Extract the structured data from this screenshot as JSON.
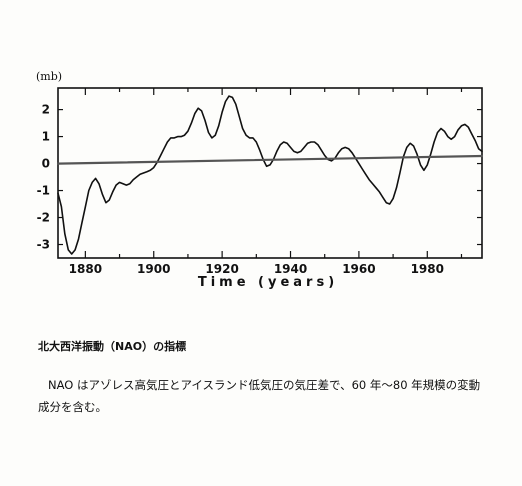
{
  "caption": {
    "title": "北大西洋振動（NAO）の指標",
    "body": "NAO はアゾレス高気圧とアイスランド低気圧の気圧差で、60 年～80 年規模の変動成分を含む。"
  },
  "chart_data": {
    "type": "line",
    "title": "",
    "unit_label": "(mb)",
    "xlabel": "Time (years)",
    "ylabel": "",
    "xlim": [
      1872,
      1996
    ],
    "ylim": [
      -3.5,
      2.8
    ],
    "xticks": [
      1880,
      1900,
      1920,
      1940,
      1960,
      1980
    ],
    "yticks": [
      -3,
      -2,
      -1,
      0,
      1,
      2
    ],
    "grid": false,
    "series": [
      {
        "values_x": [
          1872,
          1873,
          1874,
          1875,
          1876,
          1877,
          1878,
          1879,
          1880,
          1881,
          1882,
          1883,
          1884,
          1885,
          1886,
          1887,
          1888,
          1889,
          1890,
          1891,
          1892,
          1893,
          1894,
          1895,
          1896,
          1897,
          1898,
          1899,
          1900,
          1901,
          1902,
          1903,
          1904,
          1905,
          1906,
          1907,
          1908,
          1909,
          1910,
          1911,
          1912,
          1913,
          1914,
          1915,
          1916,
          1917,
          1918,
          1919,
          1920,
          1921,
          1922,
          1923,
          1924,
          1925,
          1926,
          1927,
          1928,
          1929,
          1930,
          1931,
          1932,
          1933,
          1934,
          1935,
          1936,
          1937,
          1938,
          1939,
          1940,
          1941,
          1942,
          1943,
          1944,
          1945,
          1946,
          1947,
          1948,
          1949,
          1950,
          1951,
          1952,
          1953,
          1954,
          1955,
          1956,
          1957,
          1958,
          1959,
          1960,
          1961,
          1962,
          1963,
          1964,
          1965,
          1966,
          1967,
          1968,
          1969,
          1970,
          1971,
          1972,
          1973,
          1974,
          1975,
          1976,
          1977,
          1978,
          1979,
          1980,
          1981,
          1982,
          1983,
          1984,
          1985,
          1986,
          1987,
          1988,
          1989,
          1990,
          1991,
          1992,
          1993,
          1994,
          1995,
          1996
        ],
        "values_y": [
          -1.1,
          -1.6,
          -2.6,
          -3.2,
          -3.35,
          -3.2,
          -2.8,
          -2.2,
          -1.6,
          -1.0,
          -0.7,
          -0.55,
          -0.75,
          -1.15,
          -1.45,
          -1.35,
          -1.05,
          -0.8,
          -0.7,
          -0.75,
          -0.8,
          -0.75,
          -0.6,
          -0.5,
          -0.4,
          -0.35,
          -0.3,
          -0.25,
          -0.15,
          0.05,
          0.3,
          0.55,
          0.8,
          0.95,
          0.95,
          1.0,
          1.0,
          1.05,
          1.2,
          1.5,
          1.85,
          2.05,
          1.95,
          1.6,
          1.15,
          0.95,
          1.05,
          1.4,
          1.9,
          2.3,
          2.5,
          2.45,
          2.2,
          1.75,
          1.3,
          1.05,
          0.95,
          0.95,
          0.8,
          0.5,
          0.15,
          -0.1,
          -0.05,
          0.15,
          0.45,
          0.7,
          0.8,
          0.75,
          0.6,
          0.45,
          0.4,
          0.45,
          0.6,
          0.75,
          0.8,
          0.8,
          0.7,
          0.5,
          0.3,
          0.15,
          0.1,
          0.2,
          0.4,
          0.55,
          0.6,
          0.55,
          0.4,
          0.2,
          0.0,
          -0.2,
          -0.4,
          -0.6,
          -0.75,
          -0.9,
          -1.05,
          -1.25,
          -1.45,
          -1.5,
          -1.3,
          -0.9,
          -0.35,
          0.25,
          0.6,
          0.75,
          0.65,
          0.35,
          -0.05,
          -0.25,
          -0.05,
          0.35,
          0.8,
          1.15,
          1.3,
          1.2,
          1.0,
          0.9,
          1.0,
          1.25,
          1.4,
          1.45,
          1.35,
          1.1,
          0.85,
          0.55,
          0.45
        ]
      },
      {
        "values_x": [
          1872,
          1996
        ],
        "values_y": [
          0.0,
          0.28
        ]
      }
    ]
  }
}
